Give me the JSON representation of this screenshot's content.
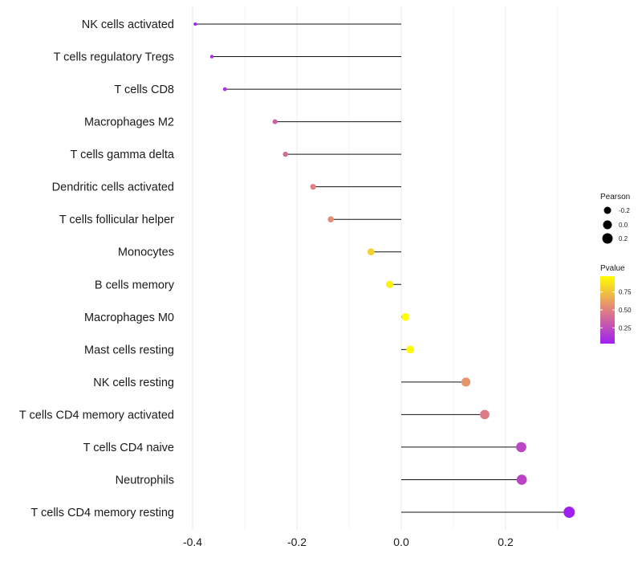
{
  "chart_data": {
    "type": "lollipop",
    "title": "",
    "xlabel": "",
    "ylabel": "",
    "xlim": [
      -0.4,
      0.33
    ],
    "xticks": [
      -0.4,
      -0.2,
      0.0,
      0.2
    ],
    "xtick_labels": [
      "-0.4",
      "-0.2",
      "0.0",
      "0.2"
    ],
    "grid": true,
    "categories": [
      "NK cells activated",
      "T cells regulatory  Tregs",
      "T cells CD8",
      "Macrophages M2",
      "T cells gamma delta",
      "Dendritic cells activated",
      "T cells follicular helper",
      "Monocytes",
      "B cells memory",
      "Macrophages M0",
      "Mast cells resting",
      "NK cells resting",
      "T cells CD4 memory activated",
      "T cells CD4 naive",
      "Neutrophils",
      "T cells CD4 memory resting"
    ],
    "pearson": [
      -0.395,
      -0.363,
      -0.338,
      -0.242,
      -0.222,
      -0.169,
      -0.135,
      -0.058,
      -0.022,
      0.008,
      0.017,
      0.124,
      0.16,
      0.23,
      0.231,
      0.322
    ],
    "pvalue": [
      0.05,
      0.1,
      0.12,
      0.35,
      0.4,
      0.5,
      0.55,
      0.8,
      0.92,
      0.97,
      0.95,
      0.58,
      0.48,
      0.22,
      0.21,
      0.03
    ],
    "legend": {
      "placement": "right",
      "size_title": "Pearson",
      "size_values": [
        -0.2,
        0.0,
        0.2
      ],
      "size_labels": [
        "-0.2",
        "0.0",
        "0.2"
      ],
      "color_title": "Pvalue",
      "color_ticks": [
        0.75,
        0.5,
        0.25
      ],
      "color_tick_labels": [
        "0.75",
        "0.50",
        "0.25"
      ],
      "color_range": [
        0.03,
        0.97
      ],
      "color_low": "#a020f0",
      "color_mid": "#e08080",
      "color_high": "#ffff00"
    }
  }
}
